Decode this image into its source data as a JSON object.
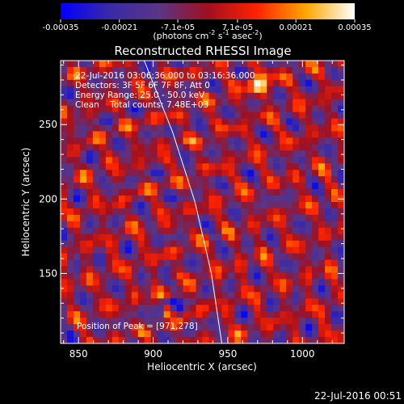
{
  "chart_data": {
    "type": "heatmap",
    "title": "Reconstructed RHESSI Image",
    "xlabel": "Heliocentric X (arcsec)",
    "ylabel": "Heliocentric Y (arcsec)",
    "xlim": [
      838,
      1028
    ],
    "ylim": [
      103,
      293
    ],
    "x_ticks": [
      850,
      900,
      950,
      1000
    ],
    "y_ticks": [
      150,
      200,
      250
    ],
    "colorbar": {
      "min": -0.00035,
      "max": 0.00035,
      "tick_values": [
        -0.00035,
        -0.00021,
        -7.1e-05,
        7.1e-05,
        0.00021,
        0.00035
      ],
      "tick_labels": [
        "-0.00035",
        "-0.00021",
        "-7.1e-05",
        "7.1e-05",
        "0.00021",
        "0.00035"
      ],
      "label": "(photons cm-2 s-1 asec-2)",
      "label_main": "(photons cm",
      "label_exp1": "-2",
      "label_mid": " s",
      "label_exp2": "-1",
      "label_mid2": " asec",
      "label_exp3": "-2",
      "label_end": ")",
      "stops": [
        "#0000ff",
        "#3a2aa8",
        "#5a3585",
        "#a01020",
        "#ff2200",
        "#ffa500",
        "#ffffff"
      ]
    },
    "annotations": [
      "22-Jul-2016 03:06:36.000 to 03:16:36.000",
      "Detectors: 3F 5F 6F 7F 8F, Att 0",
      "Energy Range: 25.0 - 50.0 keV",
      "Clean    Total counts: 7.48E+03"
    ],
    "peak_label": "Position of Peak = [971,278]",
    "peak": [
      971,
      278
    ],
    "limb_curve": [
      [
        894,
        293
      ],
      [
        913,
        245
      ],
      [
        928,
        198
      ],
      [
        939,
        150
      ],
      [
        946,
        103
      ]
    ],
    "grid": false
  },
  "footer": {
    "timestamp": "22-Jul-2016 00:51"
  }
}
